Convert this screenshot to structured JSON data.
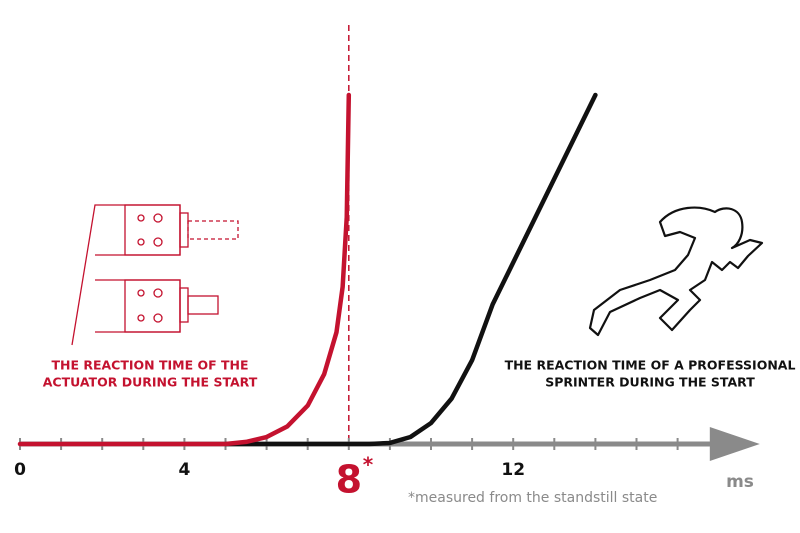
{
  "chart_data": {
    "type": "line",
    "xlim": [
      0,
      18
    ],
    "ylim": [
      0,
      100
    ],
    "xticks": [
      0,
      4,
      8,
      12
    ],
    "minor_xticks": [
      0,
      1,
      2,
      3,
      4,
      5,
      6,
      7,
      8,
      9,
      10,
      11,
      12,
      13,
      14,
      15,
      16
    ],
    "x_label": "ms",
    "highlight_x": 8,
    "highlight_color": "#c4122f",
    "highlight_mark": "*",
    "footnote": "*measured from the standstill state",
    "annotations": [
      {
        "lines": [
          "THE REACTION TIME OF THE",
          "ACTUATOR DURING THE START"
        ],
        "color": "#c4122f"
      },
      {
        "lines": [
          "THE REACTION TIME OF A PROFESSIONAL",
          "SPRINTER DURING THE START"
        ],
        "color": "#111111"
      }
    ],
    "series": [
      {
        "color": "#111111",
        "x": [
          5,
          8.5,
          9,
          9.5,
          10,
          10.5,
          11,
          11.5,
          14
        ],
        "values": [
          0,
          0,
          0.3,
          2,
          6,
          13,
          24,
          40,
          100
        ]
      },
      {
        "color": "#c4122f",
        "x": [
          0,
          5,
          5.5,
          6,
          6.5,
          7,
          7.4,
          7.7,
          7.85,
          7.95,
          8
        ],
        "values": [
          0,
          0,
          0.6,
          2,
          5,
          11,
          20,
          32,
          45,
          65,
          100
        ]
      }
    ]
  }
}
